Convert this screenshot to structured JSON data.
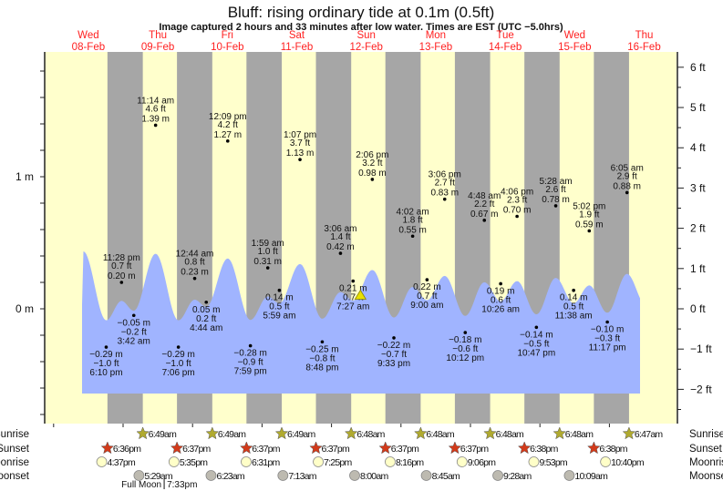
{
  "chart_data": {
    "type": "line",
    "title": "Bluff: rising  ordinary tide at 0.1m (0.5ft)",
    "subtitle": "Image captured 2 hours and 33 minutes after low water. Times are EST (UTC −5.0hrs)",
    "current": {
      "day": "12-Feb",
      "time": "10:00 am",
      "m": 0.1,
      "ft": 0.5
    },
    "days": [
      {
        "dow": "Wed",
        "date": "08-Feb"
      },
      {
        "dow": "Thu",
        "date": "09-Feb"
      },
      {
        "dow": "Fri",
        "date": "10-Feb"
      },
      {
        "dow": "Sat",
        "date": "11-Feb"
      },
      {
        "dow": "Sun",
        "date": "12-Feb"
      },
      {
        "dow": "Mon",
        "date": "13-Feb"
      },
      {
        "dow": "Tue",
        "date": "14-Feb"
      },
      {
        "dow": "Wed",
        "date": "15-Feb"
      },
      {
        "dow": "Thu",
        "date": "16-Feb"
      }
    ],
    "left_axis": {
      "unit": "m",
      "labels": [
        "1 m",
        "0 m"
      ],
      "values": [
        1,
        0
      ],
      "ylim": [
        -0.85,
        1.95
      ]
    },
    "right_axis": {
      "unit": "ft",
      "labels": [
        "6 ft",
        "5 ft",
        "4 ft",
        "3 ft",
        "2 ft",
        "1 ft",
        "0 ft",
        "−1 ft",
        "−2 ft"
      ],
      "values": [
        6,
        5,
        4,
        3,
        2,
        1,
        0,
        -1,
        -2
      ]
    },
    "tides": [
      {
        "day": "08-Feb",
        "time": "6:10 pm",
        "m": "−0.29 m",
        "ft": "−1.0 ft",
        "v": -0.29,
        "type": "low"
      },
      {
        "day": "08-Feb",
        "time": "11:28 pm",
        "m": "0.20 m",
        "ft": "0.7 ft",
        "v": 0.2,
        "type": "high"
      },
      {
        "day": "09-Feb",
        "time": "3:42 am",
        "m": "−0.05 m",
        "ft": "−0.2 ft",
        "v": -0.05,
        "type": "low"
      },
      {
        "day": "09-Feb",
        "time": "11:14 am",
        "m": "1.39 m",
        "ft": "4.6 ft",
        "v": 1.39,
        "type": "high"
      },
      {
        "day": "09-Feb",
        "time": "7:06 pm",
        "m": "−0.29 m",
        "ft": "−1.0 ft",
        "v": -0.29,
        "type": "low"
      },
      {
        "day": "10-Feb",
        "time": "12:44 am",
        "m": "0.23 m",
        "ft": "0.8 ft",
        "v": 0.23,
        "type": "high"
      },
      {
        "day": "10-Feb",
        "time": "4:44 am",
        "m": "0.05 m",
        "ft": "0.2 ft",
        "v": 0.05,
        "type": "low"
      },
      {
        "day": "10-Feb",
        "time": "12:09 pm",
        "m": "1.27 m",
        "ft": "4.2 ft",
        "v": 1.27,
        "type": "high"
      },
      {
        "day": "10-Feb",
        "time": "7:59 pm",
        "m": "−0.28 m",
        "ft": "−0.9 ft",
        "v": -0.28,
        "type": "low"
      },
      {
        "day": "11-Feb",
        "time": "1:59 am",
        "m": "0.31 m",
        "ft": "1.0 ft",
        "v": 0.31,
        "type": "high"
      },
      {
        "day": "11-Feb",
        "time": "5:59 am",
        "m": "0.14 m",
        "ft": "0.5 ft",
        "v": 0.14,
        "type": "low"
      },
      {
        "day": "11-Feb",
        "time": "1:07 pm",
        "m": "1.13 m",
        "ft": "3.7 ft",
        "v": 1.13,
        "type": "high"
      },
      {
        "day": "11-Feb",
        "time": "8:48 pm",
        "m": "−0.25 m",
        "ft": "−0.8 ft",
        "v": -0.25,
        "type": "low"
      },
      {
        "day": "12-Feb",
        "time": "3:06 am",
        "m": "0.42 m",
        "ft": "1.4 ft",
        "v": 0.42,
        "type": "high"
      },
      {
        "day": "12-Feb",
        "time": "7:27 am",
        "m": "0.21 m",
        "ft": "0.7 ft",
        "v": 0.21,
        "type": "low"
      },
      {
        "day": "12-Feb",
        "time": "2:06 pm",
        "m": "0.98 m",
        "ft": "3.2 ft",
        "v": 0.98,
        "type": "high"
      },
      {
        "day": "12-Feb",
        "time": "9:33 pm",
        "m": "−0.22 m",
        "ft": "−0.7 ft",
        "v": -0.22,
        "type": "low"
      },
      {
        "day": "13-Feb",
        "time": "4:02 am",
        "m": "0.55 m",
        "ft": "1.8 ft",
        "v": 0.55,
        "type": "high"
      },
      {
        "day": "13-Feb",
        "time": "9:00 am",
        "m": "0.22 m",
        "ft": "0.7 ft",
        "v": 0.22,
        "type": "low"
      },
      {
        "day": "13-Feb",
        "time": "3:06 pm",
        "m": "0.83 m",
        "ft": "2.7 ft",
        "v": 0.83,
        "type": "high"
      },
      {
        "day": "13-Feb",
        "time": "10:12 pm",
        "m": "−0.18 m",
        "ft": "−0.6 ft",
        "v": -0.18,
        "type": "low"
      },
      {
        "day": "14-Feb",
        "time": "4:48 am",
        "m": "0.67 m",
        "ft": "2.2 ft",
        "v": 0.67,
        "type": "high"
      },
      {
        "day": "14-Feb",
        "time": "10:26 am",
        "m": "0.19 m",
        "ft": "0.6 ft",
        "v": 0.19,
        "type": "low"
      },
      {
        "day": "14-Feb",
        "time": "4:06 pm",
        "m": "0.70 m",
        "ft": "2.3 ft",
        "v": 0.7,
        "type": "high"
      },
      {
        "day": "14-Feb",
        "time": "10:47 pm",
        "m": "−0.14 m",
        "ft": "−0.5 ft",
        "v": -0.14,
        "type": "low"
      },
      {
        "day": "15-Feb",
        "time": "5:28 am",
        "m": "0.78 m",
        "ft": "2.6 ft",
        "v": 0.78,
        "type": "high"
      },
      {
        "day": "15-Feb",
        "time": "11:38 am",
        "m": "0.14 m",
        "ft": "0.5 ft",
        "v": 0.14,
        "type": "low"
      },
      {
        "day": "15-Feb",
        "time": "5:02 pm",
        "m": "0.59 m",
        "ft": "1.9 ft",
        "v": 0.59,
        "type": "high"
      },
      {
        "day": "15-Feb",
        "time": "11:17 pm",
        "m": "−0.10 m",
        "ft": "−0.3 ft",
        "v": -0.1,
        "type": "low"
      },
      {
        "day": "16-Feb",
        "time": "6:05 am",
        "m": "0.88 m",
        "ft": "2.9 ft",
        "v": 0.88,
        "type": "high"
      }
    ],
    "astro_rows": {
      "sunrise": {
        "label": "Sunrise",
        "items": [
          {
            "day": "09-Feb",
            "time": "6:49am"
          },
          {
            "day": "10-Feb",
            "time": "6:49am"
          },
          {
            "day": "11-Feb",
            "time": "6:49am"
          },
          {
            "day": "12-Feb",
            "time": "6:48am"
          },
          {
            "day": "13-Feb",
            "time": "6:48am"
          },
          {
            "day": "14-Feb",
            "time": "6:48am"
          },
          {
            "day": "15-Feb",
            "time": "6:48am"
          },
          {
            "day": "16-Feb",
            "time": "6:47am"
          }
        ]
      },
      "sunset": {
        "label": "Sunset",
        "items": [
          {
            "day": "08-Feb",
            "time": "6:36pm"
          },
          {
            "day": "09-Feb",
            "time": "6:37pm"
          },
          {
            "day": "10-Feb",
            "time": "6:37pm"
          },
          {
            "day": "11-Feb",
            "time": "6:37pm"
          },
          {
            "day": "12-Feb",
            "time": "6:37pm"
          },
          {
            "day": "13-Feb",
            "time": "6:37pm"
          },
          {
            "day": "14-Feb",
            "time": "6:38pm"
          },
          {
            "day": "15-Feb",
            "time": "6:38pm"
          }
        ]
      },
      "moonrise": {
        "label": "Moonrise",
        "items": [
          {
            "day": "08-Feb",
            "time": "4:37pm"
          },
          {
            "day": "09-Feb",
            "time": "5:35pm"
          },
          {
            "day": "10-Feb",
            "time": "6:31pm"
          },
          {
            "day": "11-Feb",
            "time": "7:25pm"
          },
          {
            "day": "12-Feb",
            "time": "8:16pm"
          },
          {
            "day": "13-Feb",
            "time": "9:06pm"
          },
          {
            "day": "14-Feb",
            "time": "9:53pm"
          },
          {
            "day": "15-Feb",
            "time": "10:40pm"
          }
        ]
      },
      "moonset": {
        "label": "Moonset",
        "items": [
          {
            "day": "09-Feb",
            "time": "5:29am"
          },
          {
            "day": "10-Feb",
            "time": "6:23am"
          },
          {
            "day": "11-Feb",
            "time": "7:13am"
          },
          {
            "day": "12-Feb",
            "time": "8:00am"
          },
          {
            "day": "13-Feb",
            "time": "8:45am"
          },
          {
            "day": "14-Feb",
            "time": "9:28am"
          },
          {
            "day": "15-Feb",
            "time": "10:09am"
          }
        ]
      }
    },
    "moon_phase": {
      "label": "Full Moon",
      "time": "7:33pm",
      "day": "09-Feb"
    },
    "colors": {
      "day": "#ffffcc",
      "night": "#a6a6a6",
      "water": "#a0b4ff",
      "date_label": "#ff2020",
      "sunrise": "#b0aa30",
      "sunset": "#d23a1a",
      "moonrise": "#ffffc8",
      "moonset": "#bdbab0"
    }
  }
}
